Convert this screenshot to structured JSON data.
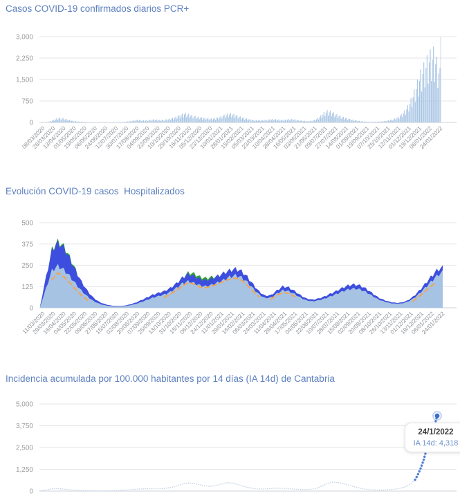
{
  "chart_data": [
    {
      "type": "bar",
      "title": "Casos COVID-19 confirmados diarios PCR+",
      "ylim": [
        0,
        3000
      ],
      "ytick_labels": [
        "0",
        "750",
        "1,500",
        "2,250",
        "3,000"
      ],
      "color": "#a6c3e3",
      "categories": [
        "08/03/2020",
        "26/03/2020",
        "13/04/2020",
        "01/05/2020",
        "19/05/2020",
        "06/06/2020",
        "24/06/2020",
        "12/07/2020",
        "30/07/2020",
        "17/08/2020",
        "04/09/2020",
        "22/09/2020",
        "10/10/2020",
        "29/10/2020",
        "16/11/2020",
        "05/12/2020",
        "23/12/2020",
        "10/01/2021",
        "28/01/2021",
        "15/02/2021",
        "05/03/2021",
        "23/03/2021",
        "10/04/2021",
        "28/04/2021",
        "16/05/2021",
        "03/06/2021",
        "21/06/2021",
        "09/07/2021",
        "27/07/2021",
        "14/08/2021",
        "01/09/2021",
        "19/09/2021",
        "07/10/2021",
        "25/10/2021",
        "12/11/2021",
        "01/12/2021",
        "19/12/2021",
        "06/01/2022",
        "24/01/2022"
      ],
      "values": [
        2,
        6,
        15,
        45,
        90,
        140,
        170,
        155,
        120,
        88,
        62,
        46,
        34,
        26,
        18,
        12,
        8,
        6,
        5,
        4,
        6,
        5,
        8,
        10,
        14,
        18,
        26,
        36,
        52,
        76,
        96,
        86,
        72,
        82,
        96,
        112,
        102,
        92,
        96,
        112,
        132,
        162,
        205,
        262,
        312,
        342,
        302,
        262,
        232,
        202,
        182,
        162,
        152,
        142,
        157,
        177,
        222,
        272,
        312,
        332,
        302,
        262,
        212,
        172,
        142,
        116,
        96,
        86,
        81,
        91,
        101,
        111,
        121,
        116,
        106,
        96,
        101,
        116,
        126,
        111,
        91,
        71,
        56,
        51,
        61,
        91,
        151,
        252,
        362,
        432,
        412,
        352,
        292,
        242,
        196,
        161,
        131,
        101,
        76,
        56,
        41,
        31,
        26,
        23,
        26,
        31,
        41,
        56,
        76,
        101,
        141,
        201,
        291,
        421,
        601,
        851,
        1151,
        1501,
        1851,
        2101,
        2351,
        2551,
        2651,
        2301,
        1901
      ]
    },
    {
      "type": "area",
      "title": "Evolución COVID-19 casos  Hospitalizados",
      "ylim": [
        0,
        500
      ],
      "ytick_labels": [
        "0",
        "125",
        "250",
        "375",
        "500"
      ],
      "categories": [
        "11/03/2020",
        "29/03/2020",
        "16/04/2020",
        "04/05/2020",
        "22/05/2020",
        "09/06/2020",
        "27/06/2020",
        "15/07/2020",
        "02/08/2020",
        "20/08/2020",
        "07/09/2020",
        "25/09/2020",
        "13/10/2020",
        "31/10/2020",
        "18/11/2020",
        "06/12/2020",
        "24/12/2020",
        "11/01/2021",
        "29/01/2021",
        "16/02/2021",
        "06/03/2021",
        "24/03/2021",
        "11/04/2021",
        "29/04/2021",
        "17/05/2021",
        "04/06/2021",
        "22/06/2021",
        "10/07/2021",
        "28/07/2021",
        "15/08/2021",
        "02/09/2021",
        "20/09/2021",
        "08/10/2021",
        "26/10/2021",
        "13/11/2021",
        "01/12/2021",
        "19/12/2021",
        "06/01/2022",
        "24/01/2022"
      ],
      "series": [
        {
          "name": "green-area",
          "color": "#35a135",
          "values": [
            10,
            175,
            362,
            408,
            380,
            312,
            234,
            150,
            98,
            58,
            33,
            20,
            13,
            10,
            11,
            17,
            27,
            42,
            58,
            74,
            86,
            97,
            115,
            142,
            180,
            216,
            210,
            190,
            182,
            190,
            192,
            208,
            224,
            234,
            220,
            184,
            138,
            96,
            70,
            74,
            102,
            126,
            120,
            98,
            73,
            53,
            47,
            53,
            65,
            81,
            97,
            115,
            131,
            137,
            131,
            113,
            88,
            62,
            46,
            34,
            29,
            30,
            41,
            64,
            99,
            140,
            183,
            222,
            243
          ]
        },
        {
          "name": "blue-area",
          "color": "#3d4ede",
          "values": [
            12,
            190,
            355,
            400,
            372,
            305,
            228,
            160,
            104,
            62,
            36,
            22,
            14,
            11,
            12,
            19,
            30,
            46,
            63,
            80,
            92,
            103,
            122,
            150,
            185,
            208,
            196,
            178,
            170,
            180,
            196,
            214,
            230,
            240,
            226,
            190,
            143,
            100,
            74,
            78,
            107,
            132,
            125,
            103,
            77,
            57,
            50,
            57,
            69,
            86,
            103,
            122,
            138,
            144,
            138,
            119,
            93,
            66,
            49,
            37,
            31,
            32,
            44,
            68,
            104,
            146,
            190,
            230,
            250
          ]
        },
        {
          "name": "light-blue-area",
          "color": "#a6c3e3",
          "values": [
            8,
            120,
            230,
            258,
            235,
            195,
            148,
            105,
            70,
            42,
            25,
            15,
            10,
            8,
            9,
            14,
            22,
            34,
            48,
            62,
            72,
            82,
            98,
            122,
            150,
            163,
            152,
            138,
            132,
            142,
            155,
            172,
            190,
            200,
            188,
            158,
            118,
            82,
            60,
            64,
            88,
            108,
            102,
            84,
            62,
            46,
            40,
            46,
            56,
            70,
            84,
            100,
            113,
            119,
            114,
            98,
            76,
            54,
            40,
            30,
            25,
            26,
            36,
            56,
            86,
            122,
            160,
            196,
            222
          ]
        },
        {
          "name": "orange-dashed-line",
          "color": "#f3a44e",
          "style": "dashed-line",
          "values": [
            null,
            null,
            165,
            205,
            182,
            148,
            108,
            72,
            45,
            null,
            null,
            null,
            null,
            null,
            null,
            null,
            null,
            null,
            null,
            null,
            null,
            62,
            80,
            102,
            128,
            148,
            140,
            122,
            118,
            128,
            140,
            155,
            168,
            175,
            162,
            132,
            96,
            64,
            null,
            52,
            74,
            90,
            84,
            66,
            null,
            null,
            null,
            null,
            null,
            null,
            null,
            null,
            null,
            null,
            null,
            null,
            null,
            null,
            null,
            null,
            null,
            null,
            null,
            40,
            66,
            96,
            126,
            150,
            null
          ]
        }
      ]
    },
    {
      "type": "line",
      "title": "Incidencia acumulada por 100.000 habitantes por 14 días (IA 14d) de Cantabria",
      "ylim": [
        0,
        5000
      ],
      "ytick_labels": [
        "0",
        "1,250",
        "2,500",
        "3,750",
        "5,000"
      ],
      "categories": [],
      "colors": {
        "base": "#c7d3e3",
        "highlight": "#4f7fd6",
        "marker": "#3b6ccc"
      },
      "highlight_from_index": 68,
      "values": [
        5,
        60,
        130,
        150,
        120,
        90,
        60,
        40,
        25,
        15,
        10,
        8,
        10,
        15,
        25,
        40,
        70,
        100,
        120,
        130,
        140,
        135,
        140,
        170,
        230,
        330,
        430,
        480,
        440,
        360,
        300,
        280,
        330,
        420,
        490,
        460,
        370,
        270,
        190,
        140,
        120,
        130,
        155,
        170,
        160,
        140,
        115,
        95,
        85,
        95,
        150,
        280,
        430,
        520,
        500,
        430,
        340,
        250,
        170,
        110,
        75,
        60,
        60,
        75,
        100,
        150,
        230,
        380,
        650,
        1300,
        2300,
        3400,
        4318
      ],
      "tooltip": {
        "date": "24/1/2022",
        "label": "IA 14d: 4,318"
      }
    }
  ]
}
